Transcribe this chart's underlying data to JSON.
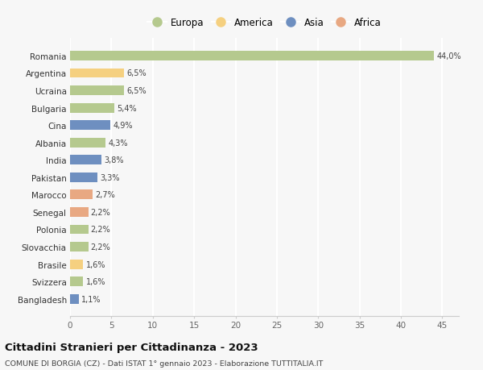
{
  "categories": [
    "Romania",
    "Argentina",
    "Ucraina",
    "Bulgaria",
    "Cina",
    "Albania",
    "India",
    "Pakistan",
    "Marocco",
    "Senegal",
    "Polonia",
    "Slovacchia",
    "Brasile",
    "Svizzera",
    "Bangladesh"
  ],
  "values": [
    44.0,
    6.5,
    6.5,
    5.4,
    4.9,
    4.3,
    3.8,
    3.3,
    2.7,
    2.2,
    2.2,
    2.2,
    1.6,
    1.6,
    1.1
  ],
  "labels": [
    "44,0%",
    "6,5%",
    "6,5%",
    "5,4%",
    "4,9%",
    "4,3%",
    "3,8%",
    "3,3%",
    "2,7%",
    "2,2%",
    "2,2%",
    "2,2%",
    "1,6%",
    "1,6%",
    "1,1%"
  ],
  "continents": [
    "Europa",
    "America",
    "Europa",
    "Europa",
    "Asia",
    "Europa",
    "Asia",
    "Asia",
    "Africa",
    "Africa",
    "Europa",
    "Europa",
    "America",
    "Europa",
    "Asia"
  ],
  "colors": {
    "Europa": "#b5c98e",
    "America": "#f5d080",
    "Asia": "#6e8fc0",
    "Africa": "#e8a882"
  },
  "legend_order": [
    "Europa",
    "America",
    "Asia",
    "Africa"
  ],
  "title": "Cittadini Stranieri per Cittadinanza - 2023",
  "subtitle": "COMUNE DI BORGIA (CZ) - Dati ISTAT 1° gennaio 2023 - Elaborazione TUTTITALIA.IT",
  "xlim": [
    0,
    47
  ],
  "xticks": [
    0,
    5,
    10,
    15,
    20,
    25,
    30,
    35,
    40,
    45
  ],
  "background_color": "#f7f7f7",
  "grid_color": "#ffffff",
  "bar_height": 0.55
}
